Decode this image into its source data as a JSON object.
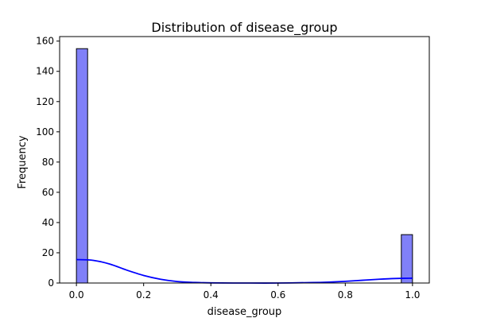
{
  "chart_data": {
    "type": "bar",
    "title": "Distribution of disease_group",
    "xlabel": "disease_group",
    "ylabel": "Frequency",
    "xlim": [
      -0.05,
      1.05
    ],
    "ylim": [
      0,
      163
    ],
    "x_ticks": [
      0.0,
      0.2,
      0.4,
      0.6,
      0.8,
      1.0
    ],
    "x_tick_labels": [
      "0.0",
      "0.2",
      "0.4",
      "0.6",
      "0.8",
      "1.0"
    ],
    "y_ticks": [
      0,
      20,
      40,
      60,
      80,
      100,
      120,
      140,
      160
    ],
    "y_tick_labels": [
      "0",
      "20",
      "40",
      "60",
      "80",
      "100",
      "120",
      "140",
      "160"
    ],
    "histogram": {
      "bins": 30,
      "range": [
        0,
        1
      ],
      "nonzero_bins": [
        {
          "x_start": 0.0,
          "x_end": 0.0333,
          "count": 155
        },
        {
          "x_start": 0.9667,
          "x_end": 1.0,
          "count": 32
        }
      ]
    },
    "kde": {
      "x": [
        0.0,
        0.05,
        0.1,
        0.15,
        0.2,
        0.25,
        0.3,
        0.35,
        0.4,
        0.5,
        0.6,
        0.7,
        0.75,
        0.8,
        0.85,
        0.9,
        0.95,
        1.0
      ],
      "y": [
        15.5,
        15.0,
        12.5,
        8.5,
        5.0,
        2.5,
        1.0,
        0.4,
        0.1,
        0.0,
        0.0,
        0.3,
        0.6,
        1.1,
        1.8,
        2.5,
        3.0,
        3.2
      ]
    },
    "grid": false,
    "colors": {
      "bar_fill": "#8080f8",
      "bar_edge": "#000000",
      "kde_line": "#0000ff"
    }
  }
}
